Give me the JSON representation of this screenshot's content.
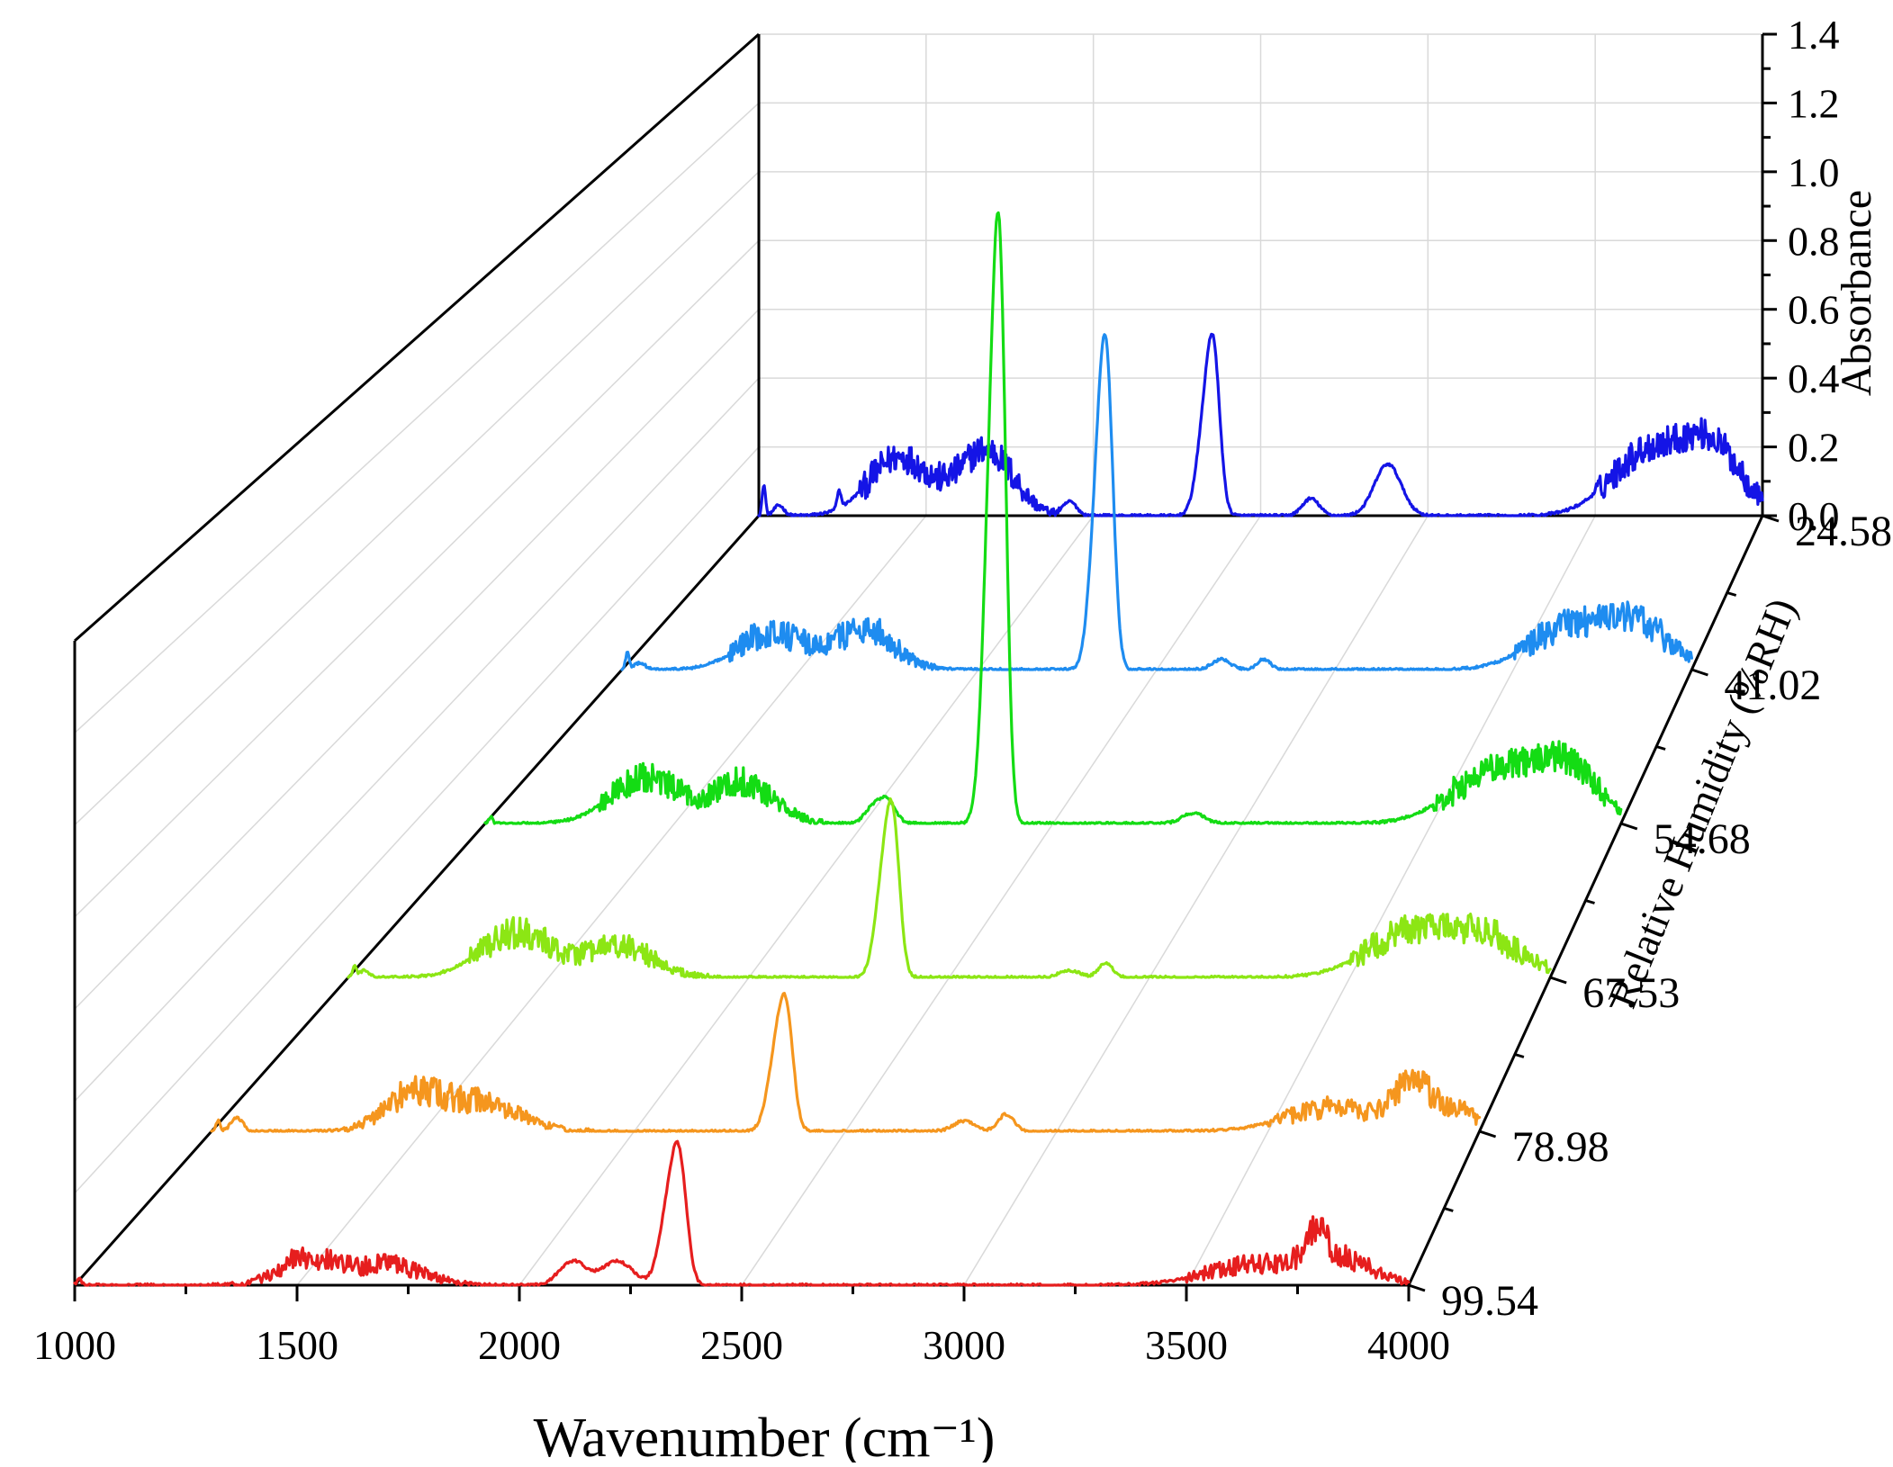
{
  "chart_data": {
    "type": "line",
    "subtype": "3d-waterfall",
    "title": "",
    "xlabel": "Wavenumber (cm⁻¹)",
    "ylabel": "Absorbance",
    "zlabel": "Relative Humidity (%RH)",
    "xlim": [
      1000,
      4000
    ],
    "ylim": [
      0.0,
      1.4
    ],
    "x_ticks": [
      1000,
      1500,
      2000,
      2500,
      3000,
      3500,
      4000
    ],
    "x_tick_labels": [
      "1000",
      "1500",
      "2000",
      "2500",
      "3000",
      "3500",
      "4000"
    ],
    "y_ticks": [
      0.0,
      0.2,
      0.4,
      0.6,
      0.8,
      1.0,
      1.2,
      1.4
    ],
    "y_tick_labels": [
      "0.0",
      "0.2",
      "0.4",
      "0.6",
      "0.8",
      "1.0",
      "1.2",
      "1.4"
    ],
    "z_categories": [
      "24.58",
      "41.02",
      "54.68",
      "67.53",
      "78.98",
      "99.54"
    ],
    "grid": true,
    "series": [
      {
        "name": "24.58",
        "color": "#1414e6",
        "x_range": [
          1000,
          4000
        ],
        "baseline": 0.0,
        "peaks": [
          {
            "center": 1015,
            "height": 0.09,
            "width": 5
          },
          {
            "center": 1060,
            "height": 0.03,
            "width": 15
          },
          {
            "center": 1240,
            "height": 0.05,
            "width": 6
          },
          {
            "center": 1420,
            "height": 0.17,
            "width": 90
          },
          {
            "center": 1680,
            "height": 0.19,
            "width": 80
          },
          {
            "center": 1930,
            "height": 0.04,
            "width": 20
          },
          {
            "center": 2340,
            "height": 0.33,
            "width": 26
          },
          {
            "center": 2362,
            "height": 0.27,
            "width": 18
          },
          {
            "center": 2650,
            "height": 0.05,
            "width": 25
          },
          {
            "center": 2880,
            "height": 0.15,
            "width": 40
          },
          {
            "center": 3655,
            "height": 0.18,
            "width": 110
          },
          {
            "center": 3850,
            "height": 0.19,
            "width": 90
          }
        ]
      },
      {
        "name": "41.02",
        "color": "#1e8cf0",
        "x_range": [
          1000,
          4000
        ],
        "baseline": 0.0,
        "peaks": [
          {
            "center": 1015,
            "height": 0.05,
            "width": 5
          },
          {
            "center": 1050,
            "height": 0.02,
            "width": 15
          },
          {
            "center": 1420,
            "height": 0.11,
            "width": 90
          },
          {
            "center": 1680,
            "height": 0.12,
            "width": 80
          },
          {
            "center": 2340,
            "height": 0.6,
            "width": 24
          },
          {
            "center": 2362,
            "height": 0.52,
            "width": 18
          },
          {
            "center": 2680,
            "height": 0.03,
            "width": 25
          },
          {
            "center": 2800,
            "height": 0.03,
            "width": 18
          },
          {
            "center": 3655,
            "height": 0.12,
            "width": 110
          },
          {
            "center": 3850,
            "height": 0.12,
            "width": 90
          }
        ]
      },
      {
        "name": "54.68",
        "color": "#14dc14",
        "x_range": [
          1000,
          4000
        ],
        "baseline": 0.0,
        "peaks": [
          {
            "center": 1015,
            "height": 0.02,
            "width": 5
          },
          {
            "center": 1420,
            "height": 0.13,
            "width": 90
          },
          {
            "center": 1680,
            "height": 0.12,
            "width": 80
          },
          {
            "center": 2020,
            "height": 0.04,
            "width": 20
          },
          {
            "center": 2060,
            "height": 0.07,
            "width": 22
          },
          {
            "center": 2340,
            "height": 1.1,
            "width": 22
          },
          {
            "center": 2362,
            "height": 1.0,
            "width": 16
          },
          {
            "center": 2870,
            "height": 0.03,
            "width": 30
          },
          {
            "center": 3655,
            "height": 0.14,
            "width": 110
          },
          {
            "center": 3850,
            "height": 0.16,
            "width": 90
          }
        ]
      },
      {
        "name": "67.53",
        "color": "#8ce614",
        "x_range": [
          1000,
          4000
        ],
        "baseline": 0.0,
        "peaks": [
          {
            "center": 1015,
            "height": 0.03,
            "width": 5
          },
          {
            "center": 1040,
            "height": 0.02,
            "width": 12
          },
          {
            "center": 1420,
            "height": 0.13,
            "width": 90
          },
          {
            "center": 1680,
            "height": 0.09,
            "width": 80
          },
          {
            "center": 2340,
            "height": 0.33,
            "width": 22
          },
          {
            "center": 2362,
            "height": 0.28,
            "width": 16
          },
          {
            "center": 2800,
            "height": 0.02,
            "width": 25
          },
          {
            "center": 2890,
            "height": 0.04,
            "width": 18
          },
          {
            "center": 3655,
            "height": 0.13,
            "width": 110
          },
          {
            "center": 3850,
            "height": 0.1,
            "width": 90
          }
        ]
      },
      {
        "name": "78.98",
        "color": "#f5961e",
        "x_range": [
          1000,
          4000
        ],
        "baseline": 0.0,
        "peaks": [
          {
            "center": 1015,
            "height": 0.03,
            "width": 5
          },
          {
            "center": 1060,
            "height": 0.04,
            "width": 14
          },
          {
            "center": 1480,
            "height": 0.11,
            "width": 70
          },
          {
            "center": 1650,
            "height": 0.08,
            "width": 80
          },
          {
            "center": 2340,
            "height": 0.25,
            "width": 22
          },
          {
            "center": 2362,
            "height": 0.22,
            "width": 16
          },
          {
            "center": 2780,
            "height": 0.03,
            "width": 25
          },
          {
            "center": 2880,
            "height": 0.05,
            "width": 18
          },
          {
            "center": 3655,
            "height": 0.07,
            "width": 110
          },
          {
            "center": 3840,
            "height": 0.12,
            "width": 40
          },
          {
            "center": 3940,
            "height": 0.06,
            "width": 60
          }
        ]
      },
      {
        "name": "99.54",
        "color": "#e61e1e",
        "x_range": [
          1000,
          4000
        ],
        "baseline": 0.0,
        "peaks": [
          {
            "center": 1010,
            "height": 0.02,
            "width": 5
          },
          {
            "center": 1520,
            "height": 0.08,
            "width": 60
          },
          {
            "center": 1700,
            "height": 0.06,
            "width": 80
          },
          {
            "center": 2120,
            "height": 0.07,
            "width": 30
          },
          {
            "center": 2220,
            "height": 0.07,
            "width": 35
          },
          {
            "center": 2340,
            "height": 0.26,
            "width": 22
          },
          {
            "center": 2362,
            "height": 0.23,
            "width": 16
          },
          {
            "center": 3655,
            "height": 0.06,
            "width": 110
          },
          {
            "center": 3850,
            "height": 0.07,
            "width": 70
          },
          {
            "center": 3790,
            "height": 0.09,
            "width": 25
          }
        ]
      }
    ]
  }
}
